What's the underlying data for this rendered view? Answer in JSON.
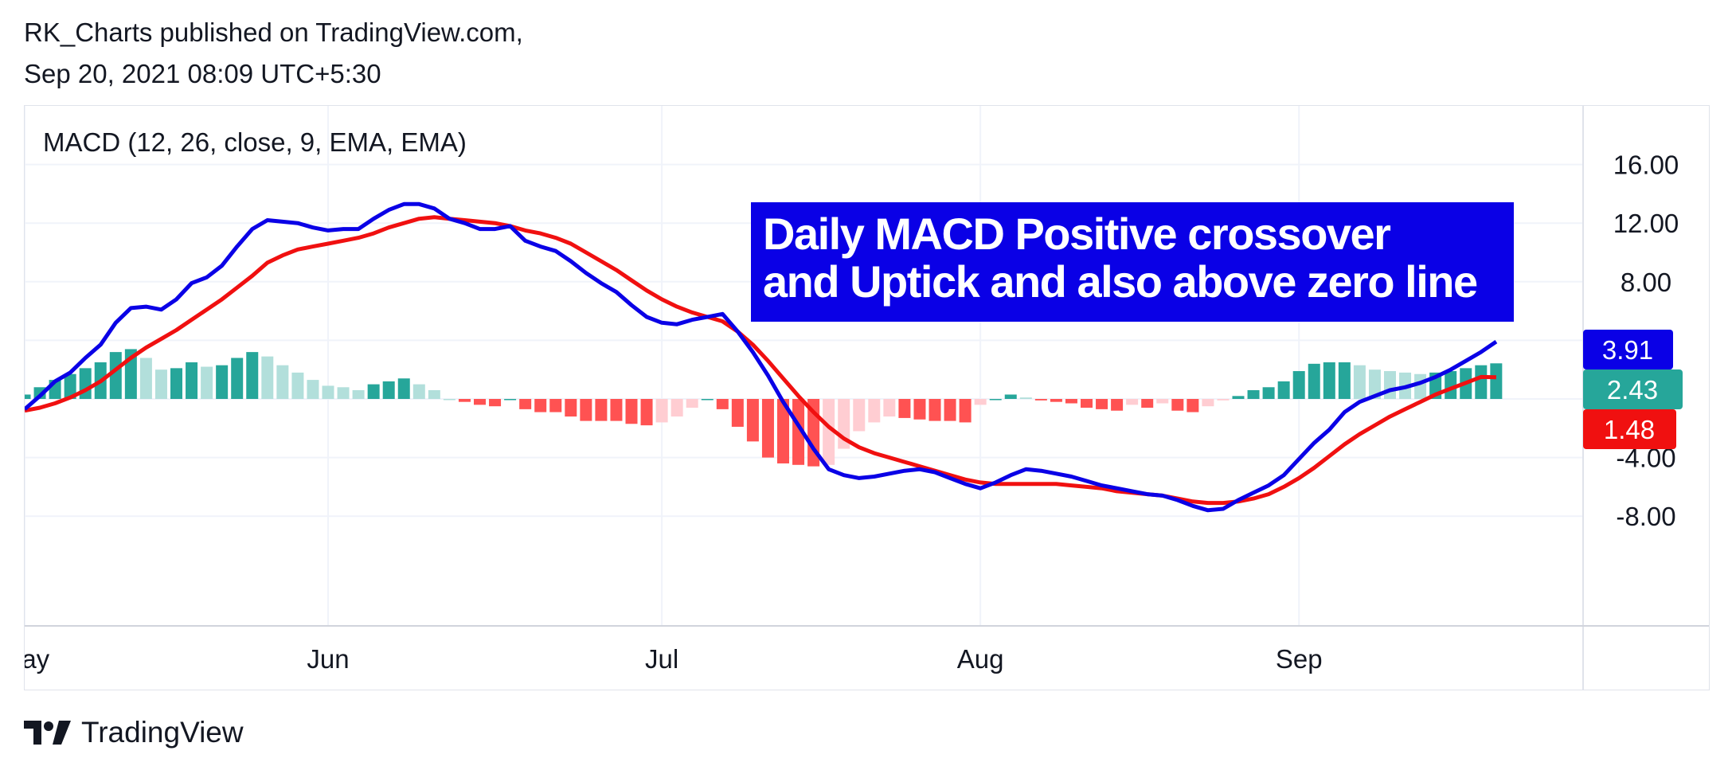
{
  "header": {
    "line1": "RK_Charts published on TradingView.com,",
    "line2": "Sep 20, 2021 08:09 UTC+5:30"
  },
  "footer": {
    "brand": "TradingView",
    "logo_icon": "tradingview-logo-icon"
  },
  "colors": {
    "macd_line": "#0a00e6",
    "signal_line": "#f01010",
    "hist_pos_strong": "#26a69a",
    "hist_pos_weak": "#b2dfdb",
    "hist_neg_strong": "#ff5252",
    "hist_neg_weak": "#ffcdd2",
    "annotation_bg": "#0a00e6",
    "badge_macd": "#0a00e6",
    "badge_hist": "#26a69a",
    "badge_signal": "#f01010"
  },
  "chart_data": {
    "type": "line",
    "title": "",
    "indicator_legend": "MACD (12, 26, close, 9, EMA, EMA)",
    "annotation": {
      "line1": "Daily MACD Positive crossover",
      "line2": "and Uptick and also above zero line"
    },
    "ylim": [
      -8.5,
      16
    ],
    "y_ticks": [
      "16.00",
      "12.00",
      "8.00",
      "-4.00",
      "-8.00"
    ],
    "y_tick_values": [
      16,
      12,
      8,
      -4,
      -8
    ],
    "x_ticks": [
      {
        "label": "May",
        "index": 0
      },
      {
        "label": "Jun",
        "index": 20
      },
      {
        "label": "Jul",
        "index": 42
      },
      {
        "label": "Aug",
        "index": 63
      },
      {
        "label": "Sep",
        "index": 84
      }
    ],
    "grid": true,
    "last_values": {
      "macd": "3.91",
      "histogram": "2.43",
      "signal": "1.48"
    },
    "series": [
      {
        "name": "MACD",
        "values": [
          -0.7,
          0.2,
          1.2,
          1.8,
          2.8,
          3.7,
          5.2,
          6.2,
          6.3,
          6.1,
          6.8,
          7.9,
          8.3,
          9.1,
          10.4,
          11.6,
          12.2,
          12.1,
          12,
          11.7,
          11.5,
          11.6,
          11.6,
          12.3,
          12.9,
          13.3,
          13.3,
          13,
          12.3,
          12,
          11.6,
          11.6,
          11.8,
          10.8,
          10.4,
          10.1,
          9.4,
          8.6,
          7.9,
          7.3,
          6.4,
          5.6,
          5.2,
          5.1,
          5.4,
          5.6,
          5.8,
          4.6,
          3.2,
          1.6,
          -0.2,
          -1.8,
          -3.4,
          -4.8,
          -5.2,
          -5.4,
          -5.3,
          -5.1,
          -4.9,
          -4.8,
          -5,
          -5.4,
          -5.8,
          -6.1,
          -5.7,
          -5.2,
          -4.8,
          -4.9,
          -5.1,
          -5.3,
          -5.6,
          -5.9,
          -6.1,
          -6.3,
          -6.5,
          -6.6,
          -6.9,
          -7.3,
          -7.6,
          -7.5,
          -6.9,
          -6.4,
          -5.9,
          -5.2,
          -4.1,
          -3,
          -2.1,
          -0.9,
          -0.2,
          0.2,
          0.6,
          0.8,
          1.1,
          1.5,
          2,
          2.6,
          3.2,
          3.91
        ]
      },
      {
        "name": "Signal",
        "values": [
          -0.8,
          -0.6,
          -0.3,
          0.1,
          0.6,
          1.2,
          2,
          2.8,
          3.5,
          4.1,
          4.7,
          5.4,
          6.1,
          6.8,
          7.6,
          8.4,
          9.3,
          9.8,
          10.2,
          10.4,
          10.6,
          10.8,
          11,
          11.3,
          11.7,
          12,
          12.3,
          12.4,
          12.3,
          12.2,
          12.1,
          12,
          11.8,
          11.5,
          11.3,
          11,
          10.6,
          10,
          9.4,
          8.8,
          8.1,
          7.4,
          6.8,
          6.3,
          5.9,
          5.6,
          5.3,
          4.6,
          3.7,
          2.6,
          1.4,
          0.2,
          -0.9,
          -1.9,
          -2.7,
          -3.3,
          -3.7,
          -4,
          -4.3,
          -4.6,
          -4.9,
          -5.2,
          -5.5,
          -5.7,
          -5.8,
          -5.8,
          -5.8,
          -5.8,
          -5.8,
          -5.9,
          -6,
          -6.1,
          -6.3,
          -6.4,
          -6.5,
          -6.6,
          -6.8,
          -7,
          -7.1,
          -7.1,
          -7,
          -6.8,
          -6.5,
          -6,
          -5.4,
          -4.7,
          -3.9,
          -3.1,
          -2.4,
          -1.8,
          -1.2,
          -0.7,
          -0.2,
          0.3,
          0.7,
          1.1,
          1.5,
          1.48
        ]
      },
      {
        "name": "Histogram",
        "values": [
          0.3,
          0.8,
          1.3,
          1.7,
          2.1,
          2.5,
          3.2,
          3.4,
          2.8,
          2,
          2.1,
          2.5,
          2.2,
          2.3,
          2.8,
          3.2,
          2.9,
          2.3,
          1.8,
          1.3,
          0.9,
          0.8,
          0.6,
          1,
          1.2,
          1.4,
          1,
          0.6,
          0,
          -0.2,
          -0.4,
          -0.5,
          0,
          -0.7,
          -0.9,
          -0.9,
          -1.2,
          -1.5,
          -1.5,
          -1.5,
          -1.7,
          -1.8,
          -1.6,
          -1.2,
          -0.6,
          0,
          -0.7,
          -1.9,
          -2.9,
          -4,
          -4.4,
          -4.5,
          -4.6,
          -4.5,
          -3.4,
          -2.2,
          -1.6,
          -1.2,
          -1.3,
          -1.4,
          -1.5,
          -1.5,
          -1.6,
          -0.4,
          0,
          0.3,
          0.1,
          -0.1,
          -0.2,
          -0.3,
          -0.6,
          -0.7,
          -0.8,
          -0.4,
          -0.6,
          -0.3,
          -0.8,
          -0.9,
          -0.5,
          -0.1,
          0.2,
          0.6,
          0.8,
          1.2,
          1.9,
          2.4,
          2.5,
          2.5,
          2.3,
          2,
          1.9,
          1.8,
          1.7,
          1.8,
          1.9,
          2.1,
          2.3,
          2.43
        ]
      }
    ]
  }
}
